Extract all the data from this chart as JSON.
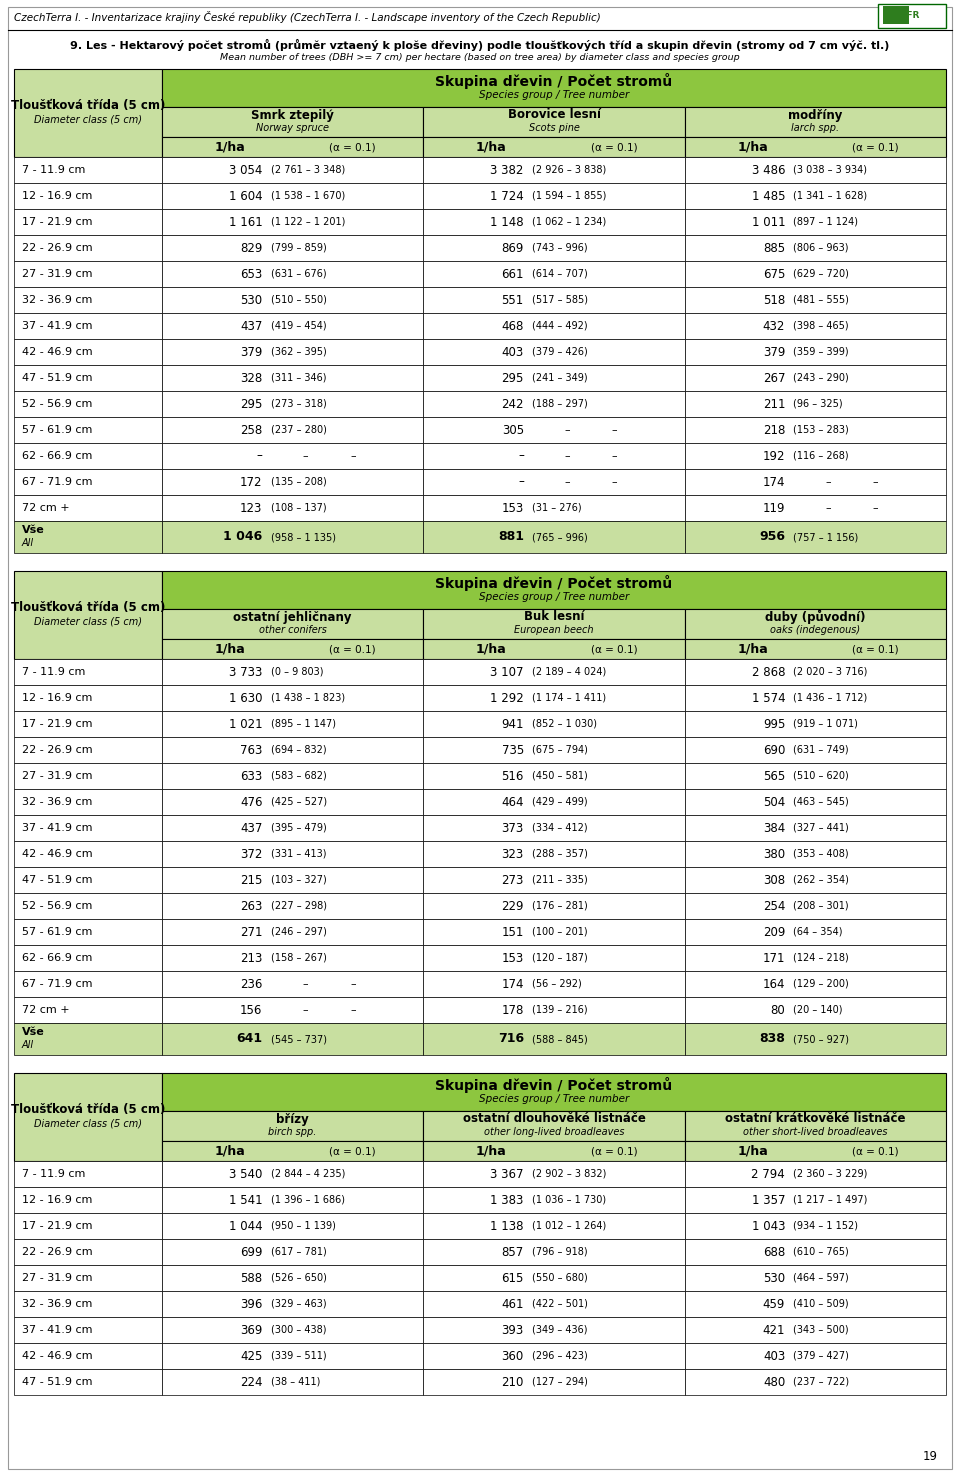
{
  "header_italic": "CzechTerra I. - Inventarizace krajiny České republiky (CzechTerra I. - Landscape inventory of the Czech Republic)",
  "title_bold": "9. Les - Hektarový počet stromů (průměr vztaený k ploše dřeviny) podle tloušťkových tříd a skupin dřevin (stromy od 7 cm výč. tl.)",
  "title_italic": "Mean number of trees (DBH >= 7 cm) per hectare (based on tree area) by diameter class and species group",
  "row_header_cz": "Tloušťková třída (5 cm)",
  "row_header_en": "Diameter class (5 cm)",
  "col_header_cz": "Skupina dřevin / Počet stromů",
  "col_header_en": "Species group / Tree number",
  "alpha_label": "(α = 0.1)",
  "unit_label": "1/ha",
  "page_number": "19",
  "green_dark": "#8DC63F",
  "green_light": "#C8DFA0",
  "white": "#FFFFFF",
  "tables": [
    {
      "species": [
        {
          "cz": "Smrk ztepilý",
          "en": "Norway spruce"
        },
        {
          "cz": "Borovice lesní",
          "en": "Scots pine"
        },
        {
          "cz": "modříny",
          "en": "larch spp."
        }
      ],
      "rows": [
        {
          "cls": "7 - 11.9 cm",
          "d": [
            [
              "3 054",
              "(2 761 – 3 348)"
            ],
            [
              "3 382",
              "(2 926 – 3 838)"
            ],
            [
              "3 486",
              "(3 038 – 3 934)"
            ]
          ]
        },
        {
          "cls": "12 - 16.9 cm",
          "d": [
            [
              "1 604",
              "(1 538 – 1 670)"
            ],
            [
              "1 724",
              "(1 594 – 1 855)"
            ],
            [
              "1 485",
              "(1 341 – 1 628)"
            ]
          ]
        },
        {
          "cls": "17 - 21.9 cm",
          "d": [
            [
              "1 161",
              "(1 122 – 1 201)"
            ],
            [
              "1 148",
              "(1 062 – 1 234)"
            ],
            [
              "1 011",
              "(897 – 1 124)"
            ]
          ]
        },
        {
          "cls": "22 - 26.9 cm",
          "d": [
            [
              "829",
              "(799 – 859)"
            ],
            [
              "869",
              "(743 – 996)"
            ],
            [
              "885",
              "(806 – 963)"
            ]
          ]
        },
        {
          "cls": "27 - 31.9 cm",
          "d": [
            [
              "653",
              "(631 – 676)"
            ],
            [
              "661",
              "(614 – 707)"
            ],
            [
              "675",
              "(629 – 720)"
            ]
          ]
        },
        {
          "cls": "32 - 36.9 cm",
          "d": [
            [
              "530",
              "(510 – 550)"
            ],
            [
              "551",
              "(517 – 585)"
            ],
            [
              "518",
              "(481 – 555)"
            ]
          ]
        },
        {
          "cls": "37 - 41.9 cm",
          "d": [
            [
              "437",
              "(419 – 454)"
            ],
            [
              "468",
              "(444 – 492)"
            ],
            [
              "432",
              "(398 – 465)"
            ]
          ]
        },
        {
          "cls": "42 - 46.9 cm",
          "d": [
            [
              "379",
              "(362 – 395)"
            ],
            [
              "403",
              "(379 – 426)"
            ],
            [
              "379",
              "(359 – 399)"
            ]
          ]
        },
        {
          "cls": "47 - 51.9 cm",
          "d": [
            [
              "328",
              "(311 – 346)"
            ],
            [
              "295",
              "(241 – 349)"
            ],
            [
              "267",
              "(243 – 290)"
            ]
          ]
        },
        {
          "cls": "52 - 56.9 cm",
          "d": [
            [
              "295",
              "(273 – 318)"
            ],
            [
              "242",
              "(188 – 297)"
            ],
            [
              "211",
              "(96 – 325)"
            ]
          ]
        },
        {
          "cls": "57 - 61.9 cm",
          "d": [
            [
              "258",
              "(237 – 280)"
            ],
            [
              "305",
              "- -"
            ],
            [
              "218",
              "(153 – 283)"
            ]
          ]
        },
        {
          "cls": "62 - 66.9 cm",
          "d": [
            [
              "–",
              "- - -"
            ],
            [
              "–",
              "- - -"
            ],
            [
              "192",
              "(116 – 268)"
            ]
          ]
        },
        {
          "cls": "67 - 71.9 cm",
          "d": [
            [
              "172",
              "(135 – 208)"
            ],
            [
              "–",
              "- - -"
            ],
            [
              "174",
              "- -"
            ]
          ]
        },
        {
          "cls": "72 cm +",
          "d": [
            [
              "123",
              "(108 – 137)"
            ],
            [
              "153",
              "(31 – 276)"
            ],
            [
              "119",
              "- -"
            ]
          ]
        },
        {
          "cls": "Vše\nAll",
          "d": [
            [
              "1 046",
              "(958 – 1 135)"
            ],
            [
              "881",
              "(765 – 996)"
            ],
            [
              "956",
              "(757 – 1 156)"
            ]
          ],
          "total": true
        }
      ]
    },
    {
      "species": [
        {
          "cz": "ostatní jehličnany",
          "en": "other conifers"
        },
        {
          "cz": "Buk lesní",
          "en": "European beech"
        },
        {
          "cz": "duby (původní)",
          "en": "oaks (indegenous)"
        }
      ],
      "rows": [
        {
          "cls": "7 - 11.9 cm",
          "d": [
            [
              "3 733",
              "(0 – 9 803)"
            ],
            [
              "3 107",
              "(2 189 – 4 024)"
            ],
            [
              "2 868",
              "(2 020 – 3 716)"
            ]
          ]
        },
        {
          "cls": "12 - 16.9 cm",
          "d": [
            [
              "1 630",
              "(1 438 – 1 823)"
            ],
            [
              "1 292",
              "(1 174 – 1 411)"
            ],
            [
              "1 574",
              "(1 436 – 1 712)"
            ]
          ]
        },
        {
          "cls": "17 - 21.9 cm",
          "d": [
            [
              "1 021",
              "(895 – 1 147)"
            ],
            [
              "941",
              "(852 – 1 030)"
            ],
            [
              "995",
              "(919 – 1 071)"
            ]
          ]
        },
        {
          "cls": "22 - 26.9 cm",
          "d": [
            [
              "763",
              "(694 – 832)"
            ],
            [
              "735",
              "(675 – 794)"
            ],
            [
              "690",
              "(631 – 749)"
            ]
          ]
        },
        {
          "cls": "27 - 31.9 cm",
          "d": [
            [
              "633",
              "(583 – 682)"
            ],
            [
              "516",
              "(450 – 581)"
            ],
            [
              "565",
              "(510 – 620)"
            ]
          ]
        },
        {
          "cls": "32 - 36.9 cm",
          "d": [
            [
              "476",
              "(425 – 527)"
            ],
            [
              "464",
              "(429 – 499)"
            ],
            [
              "504",
              "(463 – 545)"
            ]
          ]
        },
        {
          "cls": "37 - 41.9 cm",
          "d": [
            [
              "437",
              "(395 – 479)"
            ],
            [
              "373",
              "(334 – 412)"
            ],
            [
              "384",
              "(327 – 441)"
            ]
          ]
        },
        {
          "cls": "42 - 46.9 cm",
          "d": [
            [
              "372",
              "(331 – 413)"
            ],
            [
              "323",
              "(288 – 357)"
            ],
            [
              "380",
              "(353 – 408)"
            ]
          ]
        },
        {
          "cls": "47 - 51.9 cm",
          "d": [
            [
              "215",
              "(103 – 327)"
            ],
            [
              "273",
              "(211 – 335)"
            ],
            [
              "308",
              "(262 – 354)"
            ]
          ]
        },
        {
          "cls": "52 - 56.9 cm",
          "d": [
            [
              "263",
              "(227 – 298)"
            ],
            [
              "229",
              "(176 – 281)"
            ],
            [
              "254",
              "(208 – 301)"
            ]
          ]
        },
        {
          "cls": "57 - 61.9 cm",
          "d": [
            [
              "271",
              "(246 – 297)"
            ],
            [
              "151",
              "(100 – 201)"
            ],
            [
              "209",
              "(64 – 354)"
            ]
          ]
        },
        {
          "cls": "62 - 66.9 cm",
          "d": [
            [
              "213",
              "(158 – 267)"
            ],
            [
              "153",
              "(120 – 187)"
            ],
            [
              "171",
              "(124 – 218)"
            ]
          ]
        },
        {
          "cls": "67 - 71.9 cm",
          "d": [
            [
              "236",
              "- -"
            ],
            [
              "174",
              "(56 – 292)"
            ],
            [
              "164",
              "(129 – 200)"
            ]
          ]
        },
        {
          "cls": "72 cm +",
          "d": [
            [
              "156",
              "- -"
            ],
            [
              "178",
              "(139 – 216)"
            ],
            [
              "80",
              "(20 – 140)"
            ]
          ]
        },
        {
          "cls": "Vše\nAll",
          "d": [
            [
              "641",
              "(545 – 737)"
            ],
            [
              "716",
              "(588 – 845)"
            ],
            [
              "838",
              "(750 – 927)"
            ]
          ],
          "total": true
        }
      ]
    },
    {
      "species": [
        {
          "cz": "břízy",
          "en": "birch spp."
        },
        {
          "cz": "ostatní dlouhověké listnáče",
          "en": "other long-lived broadleaves"
        },
        {
          "cz": "ostatní krátkověké listnáče",
          "en": "other short-lived broadleaves"
        }
      ],
      "rows": [
        {
          "cls": "7 - 11.9 cm",
          "d": [
            [
              "3 540",
              "(2 844 – 4 235)"
            ],
            [
              "3 367",
              "(2 902 – 3 832)"
            ],
            [
              "2 794",
              "(2 360 – 3 229)"
            ]
          ]
        },
        {
          "cls": "12 - 16.9 cm",
          "d": [
            [
              "1 541",
              "(1 396 – 1 686)"
            ],
            [
              "1 383",
              "(1 036 – 1 730)"
            ],
            [
              "1 357",
              "(1 217 – 1 497)"
            ]
          ]
        },
        {
          "cls": "17 - 21.9 cm",
          "d": [
            [
              "1 044",
              "(950 – 1 139)"
            ],
            [
              "1 138",
              "(1 012 – 1 264)"
            ],
            [
              "1 043",
              "(934 – 1 152)"
            ]
          ]
        },
        {
          "cls": "22 - 26.9 cm",
          "d": [
            [
              "699",
              "(617 – 781)"
            ],
            [
              "857",
              "(796 – 918)"
            ],
            [
              "688",
              "(610 – 765)"
            ]
          ]
        },
        {
          "cls": "27 - 31.9 cm",
          "d": [
            [
              "588",
              "(526 – 650)"
            ],
            [
              "615",
              "(550 – 680)"
            ],
            [
              "530",
              "(464 – 597)"
            ]
          ]
        },
        {
          "cls": "32 - 36.9 cm",
          "d": [
            [
              "396",
              "(329 – 463)"
            ],
            [
              "461",
              "(422 – 501)"
            ],
            [
              "459",
              "(410 – 509)"
            ]
          ]
        },
        {
          "cls": "37 - 41.9 cm",
          "d": [
            [
              "369",
              "(300 – 438)"
            ],
            [
              "393",
              "(349 – 436)"
            ],
            [
              "421",
              "(343 – 500)"
            ]
          ]
        },
        {
          "cls": "42 - 46.9 cm",
          "d": [
            [
              "425",
              "(339 – 511)"
            ],
            [
              "360",
              "(296 – 423)"
            ],
            [
              "403",
              "(379 – 427)"
            ]
          ]
        },
        {
          "cls": "47 - 51.9 cm",
          "d": [
            [
              "224",
              "(38 – 411)"
            ],
            [
              "210",
              "(127 – 294)"
            ],
            [
              "480",
              "(237 – 722)"
            ]
          ]
        }
      ]
    }
  ]
}
